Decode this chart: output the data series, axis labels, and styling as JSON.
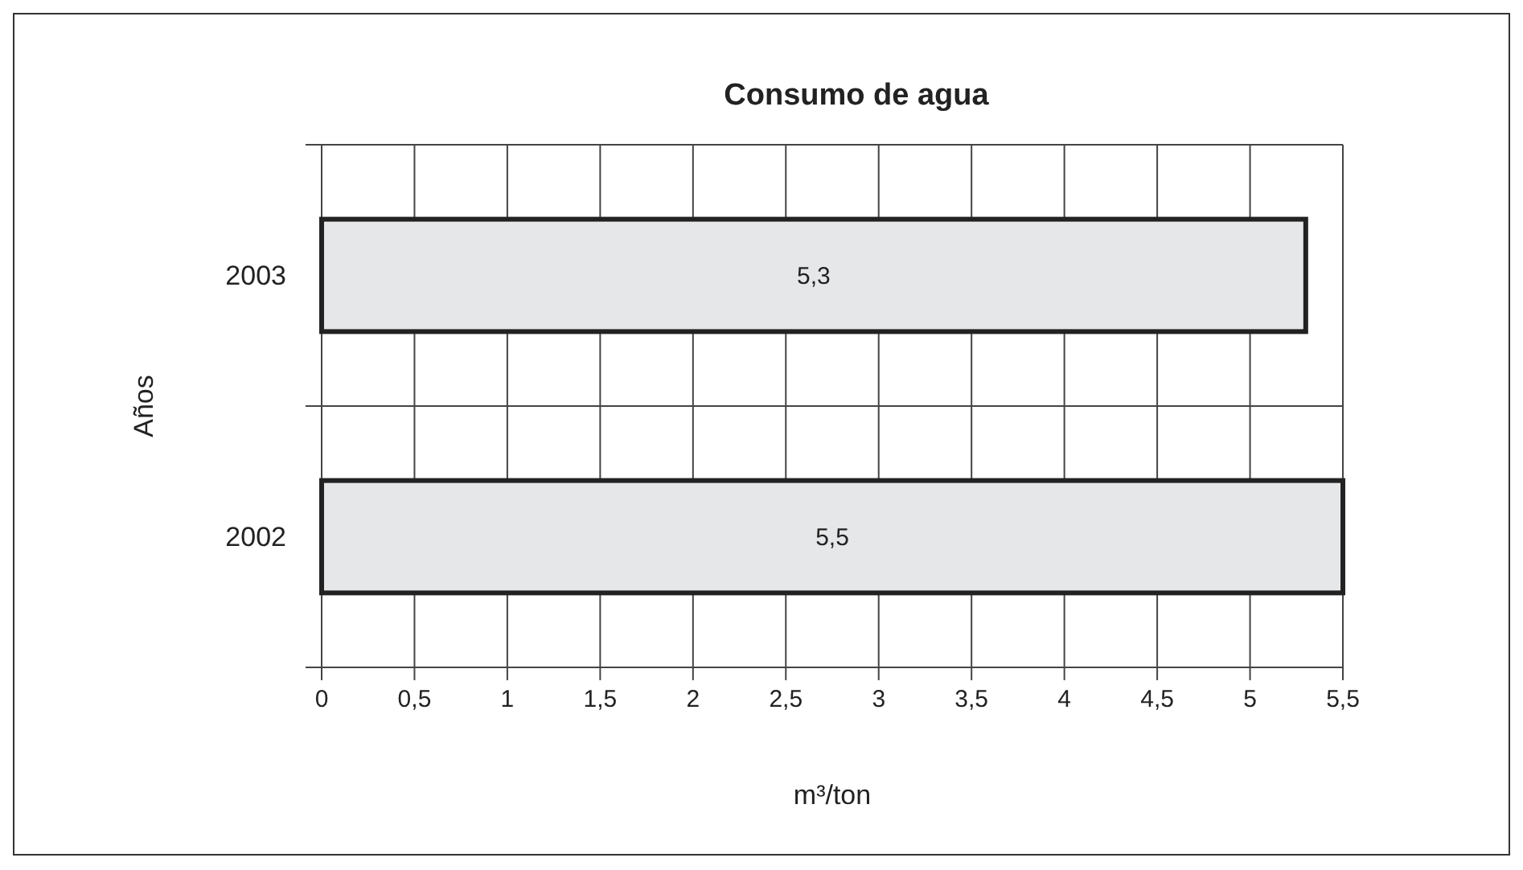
{
  "chart_data": {
    "type": "bar",
    "orientation": "horizontal",
    "title": "Consumo de agua",
    "xlabel": "m³/ton",
    "ylabel": "Años",
    "categories": [
      "2003",
      "2002"
    ],
    "values": [
      5.3,
      5.5
    ],
    "color": "#e6e7e8",
    "value_labels": [
      "5,3",
      "5,5"
    ],
    "xlim": [
      0,
      5.5
    ],
    "xticks": [
      0,
      {
        "value": 0.5,
        "label": "0,5"
      },
      1,
      {
        "value": 1.5,
        "label": "1,5"
      },
      2,
      {
        "value": 2.5,
        "label": "2,5"
      },
      3,
      {
        "value": 3.5,
        "label": "3,5"
      },
      4,
      {
        "value": 4.5,
        "label": "4,5"
      },
      5,
      {
        "value": 5.5,
        "label": "5,5"
      }
    ],
    "grid": true
  }
}
